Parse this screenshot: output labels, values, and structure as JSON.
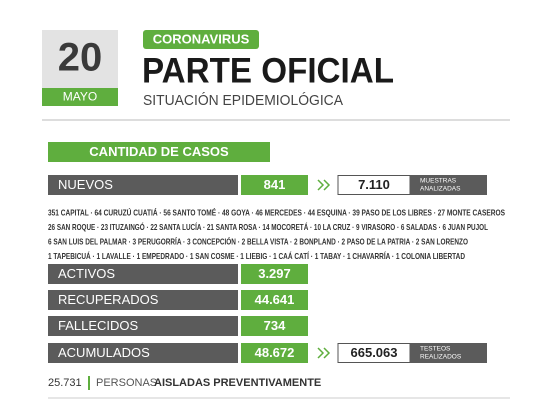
{
  "date": {
    "day": "20",
    "month": "MAYO"
  },
  "header": {
    "tag": "CORONAVIRUS",
    "title": "PARTE OFICIAL",
    "subtitle": "SITUACIÓN EPIDEMIOLÓGICA"
  },
  "section": "CANTIDAD DE CASOS",
  "rows": [
    {
      "label": "NUEVOS",
      "value": "841",
      "extra": {
        "value": "7.110",
        "label": [
          "MUESTRAS",
          "ANALIZADAS"
        ]
      }
    },
    {
      "label": "ACTIVOS",
      "value": "3.297"
    },
    {
      "label": "RECUPERADOS",
      "value": "44.641"
    },
    {
      "label": "FALLECIDOS",
      "value": "734"
    },
    {
      "label": "ACUMULADOS",
      "value": "48.672",
      "extra": {
        "value": "665.063",
        "label": [
          "TESTEOS",
          "REALIZADOS"
        ]
      }
    }
  ],
  "districts": [
    "351 CAPITAL · 64 CURUZÚ CUATIÁ · 56 SANTO TOMÉ · 48 GOYA · 46 MERCEDES · 44 ESQUINA · 39 PASO DE LOS LIBRES · 27 MONTE CASEROS",
    "26 SAN ROQUE · 23 ITUZAINGÓ · 22 SANTA LUCÍA · 21 SANTA ROSA · 14 MOCORETÁ · 10 LA CRUZ · 9 VIRASORO · 6 SALADAS · 6 JUAN PUJOL",
    "6 SAN LUIS DEL PALMAR · 3 PERUGORRÍA · 3 CONCEPCIÓN · 2 BELLA VISTA · 2 BONPLAND · 2 PASO DE LA PATRIA · 2 SAN LORENZO",
    "1 TAPEBICUÁ · 1 LAVALLE · 1 EMPEDRADO · 1 SAN COSME · 1 LIEBIG · 1 CAÁ CATÍ · 1 TABAY · 1 CHAVARRÍA · 1 COLONIA LIBERTAD"
  ],
  "footer": {
    "count": "25.731",
    "label": "PERSONAS",
    "label_bold": "AISLADAS PREVENTIVAMENTE"
  }
}
